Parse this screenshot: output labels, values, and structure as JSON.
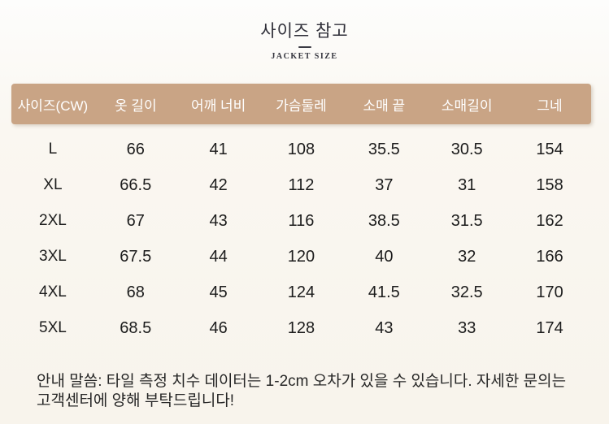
{
  "header": {
    "title": "사이즈 참고",
    "subtitle": "JACKET SIZE"
  },
  "table": {
    "header_bg": "#c9a485",
    "header_text_color": "#ffffff",
    "columns": [
      "사이즈(CW)",
      "옷 길이",
      "어깨 너비",
      "가슴둘레",
      "소매 끝",
      "소매길이",
      "그네"
    ],
    "rows": [
      {
        "cells": [
          "L",
          "66",
          "41",
          "108",
          "35.5",
          "30.5",
          "154"
        ]
      },
      {
        "cells": [
          "XL",
          "66.5",
          "42",
          "112",
          "37",
          "31",
          "158"
        ]
      },
      {
        "cells": [
          "2XL",
          "67",
          "43",
          "116",
          "38.5",
          "31.5",
          "162"
        ]
      },
      {
        "cells": [
          "3XL",
          "67.5",
          "44",
          "120",
          "40",
          "32",
          "166"
        ]
      },
      {
        "cells": [
          "4XL",
          "68",
          "45",
          "124",
          "41.5",
          "32.5",
          "170"
        ]
      },
      {
        "cells": [
          "5XL",
          "68.5",
          "46",
          "128",
          "43",
          "33",
          "174"
        ]
      }
    ]
  },
  "note": {
    "line1": "안내 말씀: 타일 측정 치수 데이터는 1-2cm 오차가 있을 수 있습니다. 자세한 문의는",
    "line2": "고객센터에 양해 부탁드립니다!"
  }
}
